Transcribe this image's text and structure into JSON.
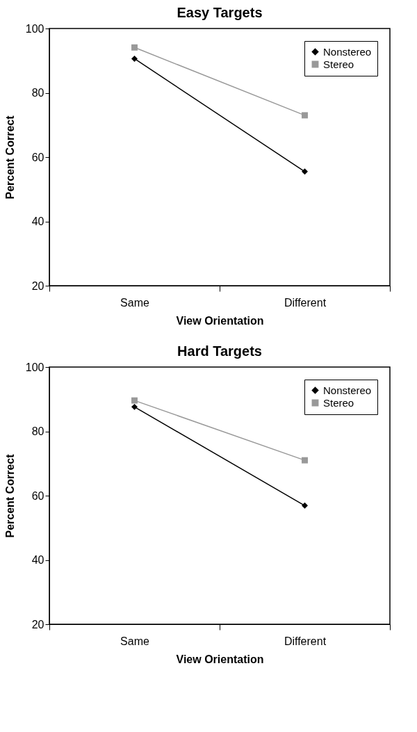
{
  "chart_data": [
    {
      "type": "line",
      "title": "Easy Targets",
      "xlabel": "View Orientation",
      "ylabel": "Percent Correct",
      "categories": [
        "Same",
        "Different"
      ],
      "ylim": [
        20,
        100
      ],
      "yticks": [
        20,
        40,
        60,
        80,
        100
      ],
      "legend": "top right",
      "grid": false,
      "series": [
        {
          "name": "Nonstereo",
          "color": "#000000",
          "marker": "diamond",
          "values": [
            90.6,
            55.5
          ]
        },
        {
          "name": "Stereo",
          "color": "#999999",
          "marker": "square",
          "values": [
            94.1,
            73.0
          ]
        }
      ]
    },
    {
      "type": "line",
      "title": "Hard Targets",
      "xlabel": "View Orientation",
      "ylabel": "Percent Correct",
      "categories": [
        "Same",
        "Different"
      ],
      "ylim": [
        20,
        100
      ],
      "yticks": [
        20,
        40,
        60,
        80,
        100
      ],
      "legend": "top right",
      "grid": false,
      "series": [
        {
          "name": "Nonstereo",
          "color": "#000000",
          "marker": "diamond",
          "values": [
            87.6,
            56.9
          ]
        },
        {
          "name": "Stereo",
          "color": "#999999",
          "marker": "square",
          "values": [
            89.6,
            71.0
          ]
        }
      ]
    }
  ]
}
